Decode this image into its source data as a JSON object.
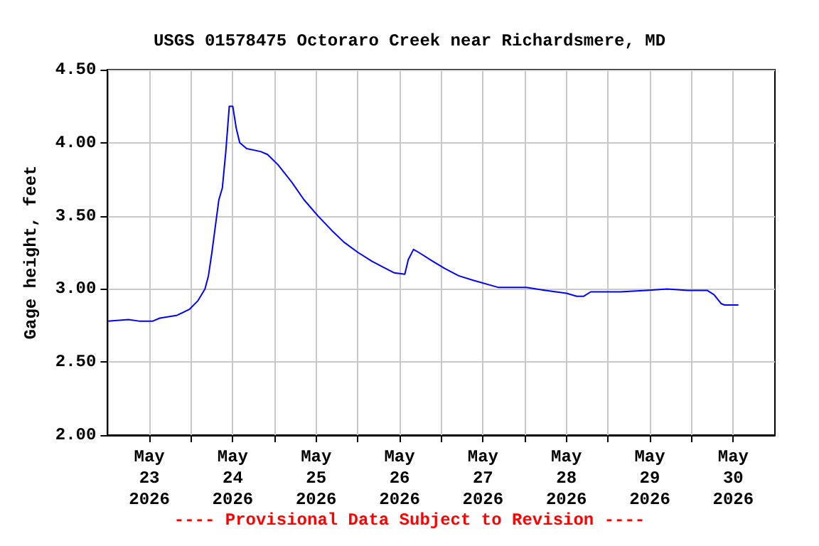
{
  "chart_data": {
    "type": "line",
    "title": "USGS 01578475 Octoraro Creek near Richardsmere, MD",
    "ylabel": "Gage height, feet",
    "annotations": [
      "---- Provisional Data Subject to Revision ----"
    ],
    "xlim": [
      "2026-05-23T00:00",
      "2026-05-31T00:00"
    ],
    "xticks": [
      {
        "value": "2026-05-23T12:00",
        "label": "May\n23\n2026"
      },
      {
        "value": "2026-05-24T00:00",
        "label": null
      },
      {
        "value": "2026-05-24T12:00",
        "label": "May\n24\n2026"
      },
      {
        "value": "2026-05-25T00:00",
        "label": null
      },
      {
        "value": "2026-05-25T12:00",
        "label": "May\n25\n2026"
      },
      {
        "value": "2026-05-26T00:00",
        "label": null
      },
      {
        "value": "2026-05-26T12:00",
        "label": "May\n26\n2026"
      },
      {
        "value": "2026-05-27T00:00",
        "label": null
      },
      {
        "value": "2026-05-27T12:00",
        "label": "May\n27\n2026"
      },
      {
        "value": "2026-05-28T00:00",
        "label": null
      },
      {
        "value": "2026-05-28T12:00",
        "label": "May\n28\n2026"
      },
      {
        "value": "2026-05-29T00:00",
        "label": null
      },
      {
        "value": "2026-05-29T12:00",
        "label": "May\n29\n2026"
      },
      {
        "value": "2026-05-30T00:00",
        "label": null
      },
      {
        "value": "2026-05-30T12:00",
        "label": "May\n30\n2026"
      }
    ],
    "ylim": [
      2,
      4.5
    ],
    "yticks": [
      {
        "value": 2,
        "label": "2.00"
      },
      {
        "value": 2.5,
        "label": "2.50"
      },
      {
        "value": 3,
        "label": "3.00"
      },
      {
        "value": 3.5,
        "label": "3.50"
      },
      {
        "value": 4,
        "label": "4.00"
      },
      {
        "value": 4.5,
        "label": "4.50"
      }
    ],
    "grid": true,
    "marker": "none",
    "series": [
      {
        "color": "#0000ff",
        "x": [
          "2026-05-23T00:00",
          "2026-05-23T06:00",
          "2026-05-23T09:00",
          "2026-05-23T13:00",
          "2026-05-23T15:00",
          "2026-05-23T20:00",
          "2026-05-23T23:30",
          "2026-05-24T02:00",
          "2026-05-24T04:00",
          "2026-05-24T05:00",
          "2026-05-24T06:00",
          "2026-05-24T07:00",
          "2026-05-24T08:00",
          "2026-05-24T09:00",
          "2026-05-24T10:00",
          "2026-05-24T11:00",
          "2026-05-24T12:00",
          "2026-05-24T13:00",
          "2026-05-24T14:00",
          "2026-05-24T16:00",
          "2026-05-24T20:00",
          "2026-05-24T22:00",
          "2026-05-25T01:00",
          "2026-05-25T05:00",
          "2026-05-25T08:30",
          "2026-05-25T12:30",
          "2026-05-25T16:30",
          "2026-05-25T20:00",
          "2026-05-26T00:00",
          "2026-05-26T04:00",
          "2026-05-26T08:00",
          "2026-05-26T10:30",
          "2026-05-26T13:30",
          "2026-05-26T14:30",
          "2026-05-26T16:00",
          "2026-05-26T17:30",
          "2026-05-26T21:30",
          "2026-05-27T01:00",
          "2026-05-27T05:00",
          "2026-05-27T09:00",
          "2026-05-27T16:30",
          "2026-05-28T00:30",
          "2026-05-28T06:00",
          "2026-05-28T12:00",
          "2026-05-28T15:00",
          "2026-05-28T17:00",
          "2026-05-28T19:00",
          "2026-05-29T03:30",
          "2026-05-29T11:00",
          "2026-05-29T17:00",
          "2026-05-29T23:00",
          "2026-05-30T04:30",
          "2026-05-30T06:30",
          "2026-05-30T08:30",
          "2026-05-30T09:30",
          "2026-05-30T13:30"
        ],
        "values": [
          2.78,
          2.79,
          2.78,
          2.78,
          2.8,
          2.82,
          2.86,
          2.92,
          3.0,
          3.09,
          3.25,
          3.43,
          3.61,
          3.69,
          3.94,
          4.25,
          4.25,
          4.1,
          4.0,
          3.96,
          3.94,
          3.92,
          3.85,
          3.73,
          3.61,
          3.5,
          3.4,
          3.32,
          3.25,
          3.19,
          3.14,
          3.11,
          3.1,
          3.2,
          3.27,
          3.25,
          3.19,
          3.14,
          3.09,
          3.06,
          3.01,
          3.01,
          2.99,
          2.97,
          2.95,
          2.95,
          2.98,
          2.98,
          2.99,
          3.0,
          2.99,
          2.99,
          2.96,
          2.9,
          2.89,
          2.89
        ]
      }
    ]
  }
}
